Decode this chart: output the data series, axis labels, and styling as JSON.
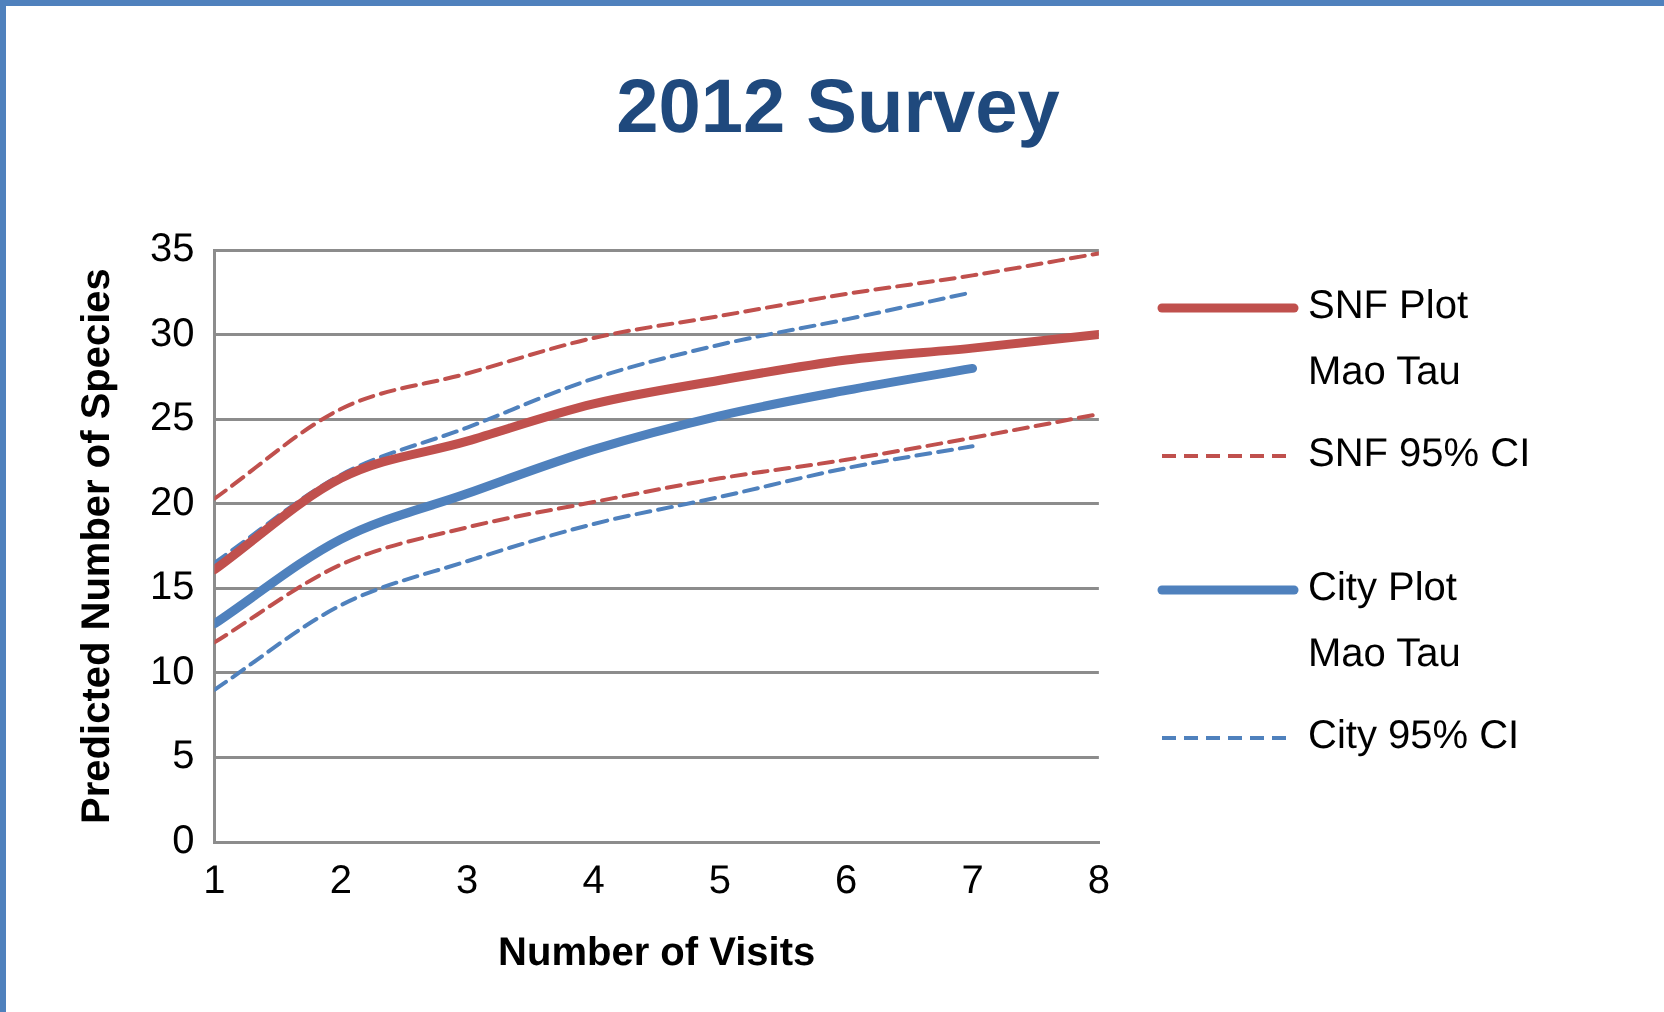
{
  "chart_data": {
    "type": "line",
    "title": "2012 Survey",
    "xlabel": "Number of Visits",
    "ylabel": "Predicted Number of Species",
    "x": [
      1,
      2,
      3,
      4,
      5,
      6,
      7,
      8
    ],
    "xlim": [
      1,
      8
    ],
    "xticks": [
      1,
      2,
      3,
      4,
      5,
      6,
      7,
      8
    ],
    "ylim": [
      0,
      35
    ],
    "yticks": [
      0,
      5,
      10,
      15,
      20,
      25,
      30,
      35
    ],
    "grid": "y",
    "legend": "right",
    "marker": "none",
    "series": [
      {
        "name": "SNF Plot Mao Tau",
        "color": "#c0504d",
        "line_style": "solid",
        "values": [
          16.1,
          21.5,
          23.7,
          25.9,
          27.3,
          28.5,
          29.2,
          30.0
        ]
      },
      {
        "name": "SNF 95% CI",
        "color": "#c0504d",
        "line_style": "dashed",
        "values": [
          20.3,
          25.6,
          27.7,
          29.8,
          31.1,
          32.4,
          33.5,
          34.8
        ]
      },
      {
        "color": "#c0504d",
        "line_style": "dashed",
        "values": [
          11.8,
          16.4,
          18.6,
          20.1,
          21.5,
          22.6,
          23.9,
          25.3
        ]
      },
      {
        "name": "City Plot Mao Tau",
        "color": "#4f81bd",
        "line_style": "solid",
        "values": [
          12.9,
          17.9,
          20.6,
          23.2,
          25.2,
          26.7,
          28.0,
          null
        ]
      },
      {
        "name": "City 95% CI",
        "color": "#4f81bd",
        "line_style": "dashed",
        "values": [
          16.5,
          21.7,
          24.5,
          27.4,
          29.4,
          30.9,
          32.5,
          null
        ]
      },
      {
        "color": "#4f81bd",
        "line_style": "dashed",
        "values": [
          9.0,
          14.0,
          16.6,
          18.8,
          20.4,
          22.1,
          23.4,
          null
        ]
      }
    ]
  }
}
